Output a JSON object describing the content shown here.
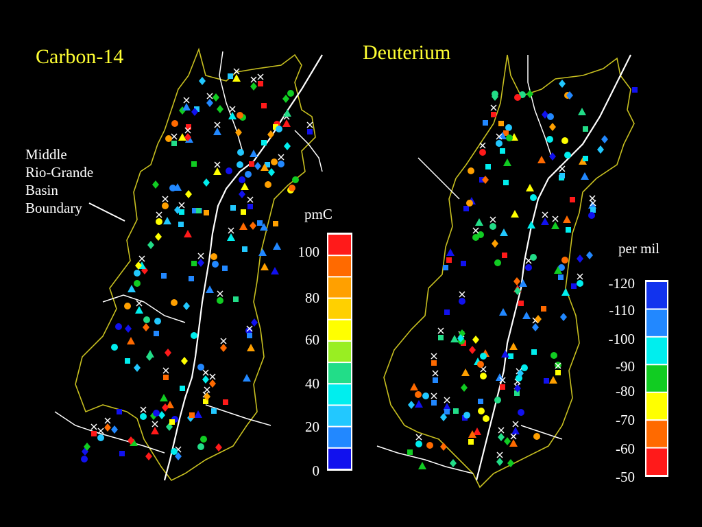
{
  "maps": [
    {
      "title": "Carbon-14",
      "annotation": [
        "Middle",
        "Rio-Grande",
        "Basin",
        "Boundary"
      ]
    },
    {
      "title": "Deuterium"
    }
  ],
  "legends": [
    {
      "unit": "pmC",
      "tick_labels": [
        "100",
        "80",
        "60",
        "40",
        "20",
        "0"
      ],
      "colors": [
        "#ff1a1a",
        "#ff6a00",
        "#ffa000",
        "#ffd000",
        "#ffff00",
        "#99ee22",
        "#22dd88",
        "#00eeee",
        "#22c8ff",
        "#2288ff",
        "#1111ee"
      ]
    },
    {
      "unit": "per mil",
      "tick_labels": [
        "-120",
        "-110",
        "-100",
        "-90",
        "-80",
        "-70",
        "-60",
        "-50"
      ],
      "colors": [
        "#1133ee",
        "#2288ff",
        "#00eeee",
        "#11cc22",
        "#ffff00",
        "#ff6a00",
        "#ff1a1a"
      ]
    }
  ]
}
